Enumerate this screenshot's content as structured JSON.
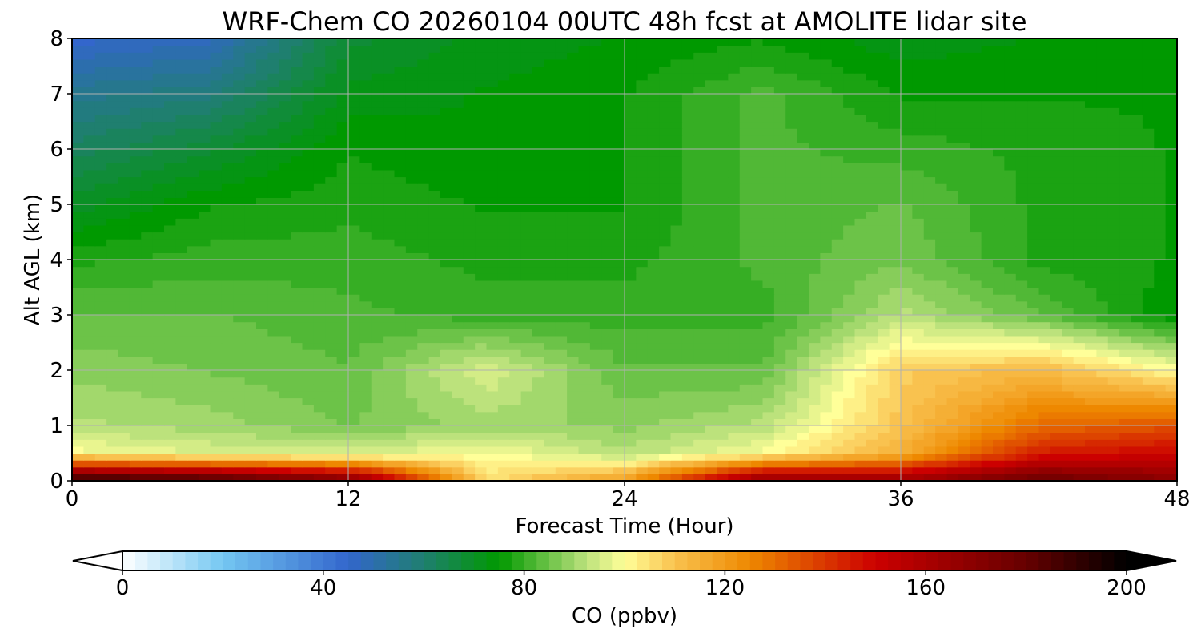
{
  "chart_data": {
    "type": "heatmap",
    "title": "WRF-Chem CO  20260104 00UTC 48h fcst at AMOLITE lidar site",
    "xlabel": "Forecast Time (Hour)",
    "ylabel": "Alt AGL (km)",
    "xlim": [
      0,
      48
    ],
    "ylim": [
      0,
      8
    ],
    "x_ticks": [
      0,
      12,
      24,
      36,
      48
    ],
    "y_ticks": [
      0,
      1,
      2,
      3,
      4,
      5,
      6,
      7,
      8
    ],
    "grid": true,
    "x": [
      0,
      6,
      12,
      18,
      24,
      30,
      36,
      42,
      48
    ],
    "y": [
      0,
      0.5,
      1,
      2,
      3,
      4,
      5,
      6,
      7,
      8
    ],
    "z": [
      [
        195,
        190,
        175,
        105,
        120,
        170,
        165,
        180,
        170
      ],
      [
        100,
        96,
        95,
        100,
        92,
        100,
        115,
        145,
        150
      ],
      [
        92,
        90,
        86,
        90,
        88,
        92,
        110,
        130,
        135
      ],
      [
        88,
        86,
        84,
        96,
        84,
        84,
        108,
        112,
        100
      ],
      [
        84,
        84,
        82,
        80,
        80,
        80,
        92,
        84,
        74
      ],
      [
        78,
        80,
        80,
        78,
        78,
        82,
        86,
        78,
        76
      ],
      [
        70,
        76,
        78,
        76,
        76,
        82,
        84,
        78,
        76
      ],
      [
        62,
        68,
        76,
        74,
        76,
        82,
        80,
        78,
        76
      ],
      [
        55,
        58,
        72,
        74,
        76,
        82,
        76,
        76,
        76
      ],
      [
        45,
        48,
        68,
        72,
        74,
        76,
        72,
        74,
        74
      ]
    ],
    "colorbar": {
      "label": "CO  (ppbv)",
      "min": 0,
      "max": 200,
      "ticks": [
        0,
        40,
        80,
        120,
        160,
        200
      ],
      "extend": "both",
      "colors": [
        {
          "v": 0,
          "c": "#ffffff"
        },
        {
          "v": 20,
          "c": "#74c7f2"
        },
        {
          "v": 45,
          "c": "#3366cc"
        },
        {
          "v": 60,
          "c": "#1f7f6f"
        },
        {
          "v": 75,
          "c": "#009900"
        },
        {
          "v": 92,
          "c": "#b8e07a"
        },
        {
          "v": 100,
          "c": "#ffff99"
        },
        {
          "v": 110,
          "c": "#f9c24f"
        },
        {
          "v": 125,
          "c": "#ee8800"
        },
        {
          "v": 150,
          "c": "#cc0000"
        },
        {
          "v": 180,
          "c": "#660000"
        },
        {
          "v": 200,
          "c": "#000000"
        }
      ],
      "under_color": "#ffffff",
      "over_color": "#000000"
    }
  }
}
